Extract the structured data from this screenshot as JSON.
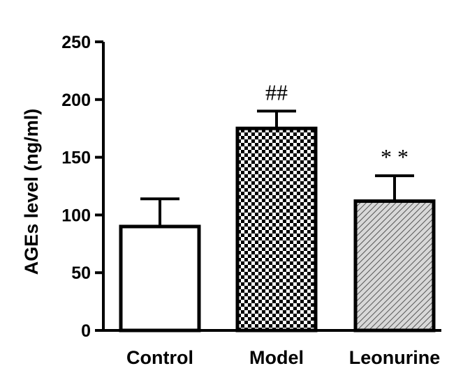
{
  "chart_data": {
    "type": "bar",
    "title": "",
    "xlabel": "",
    "ylabel": "AGEs level (ng/ml)",
    "ylim": [
      0,
      250
    ],
    "yticks": [
      0,
      50,
      100,
      150,
      200,
      250
    ],
    "grid": false,
    "categories": [
      "Control",
      "Model",
      "Leonurine"
    ],
    "values": [
      90,
      175,
      112
    ],
    "errors": [
      24,
      15,
      22
    ],
    "annotations": [
      "",
      "##",
      "* *"
    ],
    "fills": [
      "white",
      "checkerboard",
      "diagonal-hatch"
    ],
    "colors": {
      "bar_stroke": "#000000",
      "fill_dark": "#000000",
      "background": "#ffffff",
      "hatch_fill": "#c8c8c8"
    }
  }
}
